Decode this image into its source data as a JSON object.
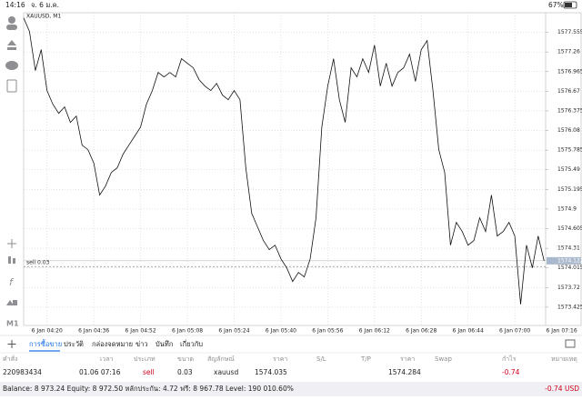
{
  "status_bar": {
    "time": "14:16",
    "date": "จ. 6 ม.ค.",
    "battery": "67%"
  },
  "chart_data": {
    "type": "line",
    "title": "XAUUSD, M1",
    "color": "#111111",
    "grid": true,
    "timeframe": "M1",
    "ylim": [
      1573.15,
      1577.85
    ],
    "yticks": [
      1573.425,
      1573.72,
      1574.015,
      1574.31,
      1574.605,
      1574.9,
      1575.195,
      1575.49,
      1575.785,
      1576.08,
      1576.375,
      1576.67,
      1576.965,
      1577.26,
      1577.555
    ],
    "bid": 1574.122,
    "order_line": {
      "label": "sell 0.03",
      "value": 1574.035
    },
    "categories": [
      null,
      null,
      null,
      null,
      "6 Jan 04:20",
      null,
      null,
      null,
      null,
      null,
      null,
      null,
      "6 Jan 04:36",
      null,
      null,
      null,
      null,
      null,
      null,
      null,
      "6 Jan 04:52",
      null,
      null,
      null,
      null,
      null,
      null,
      null,
      "6 Jan 05:08",
      null,
      null,
      null,
      null,
      null,
      null,
      null,
      "6 Jan 05:24",
      null,
      null,
      null,
      null,
      null,
      null,
      null,
      "6 Jan 05:40",
      null,
      null,
      null,
      null,
      null,
      null,
      null,
      "6 Jan 05:56",
      null,
      null,
      null,
      null,
      null,
      null,
      null,
      "6 Jan 06:12",
      null,
      null,
      null,
      null,
      null,
      null,
      null,
      "6 Jan 06:28",
      null,
      null,
      null,
      null,
      null,
      null,
      null,
      "6 Jan 06:44",
      null,
      null,
      null,
      null,
      null,
      null,
      null,
      "6 Jan 07:00",
      null,
      null,
      null,
      null,
      null,
      null,
      null,
      "6 Jan 07:16"
    ],
    "values": [
      1577.773,
      1577.568,
      1576.981,
      1577.295,
      1576.68,
      1576.475,
      1576.338,
      1576.434,
      1576.202,
      1576.297,
      1575.86,
      1575.792,
      1575.587,
      1575.109,
      1575.245,
      1575.45,
      1575.519,
      1575.724,
      1575.86,
      1575.997,
      1576.133,
      1576.475,
      1576.68,
      1576.953,
      1576.885,
      1576.953,
      1576.885,
      1577.158,
      1577.09,
      1577.022,
      1576.844,
      1576.748,
      1576.68,
      1576.789,
      1576.612,
      1576.543,
      1576.68,
      1576.543,
      1575.519,
      1574.835,
      1574.631,
      1574.426,
      1574.289,
      1574.357,
      1574.152,
      1574.016,
      1573.811,
      1573.947,
      1573.879,
      1574.152,
      1574.767,
      1576.133,
      1576.748,
      1577.158,
      1576.543,
      1576.202,
      1577.022,
      1576.885,
      1577.158,
      1576.953,
      1577.363,
      1576.748,
      1577.09,
      1576.748,
      1576.953,
      1577.022,
      1577.227,
      1576.817,
      1577.295,
      1577.431,
      1576.68,
      1575.792,
      1575.45,
      1574.357,
      1574.699,
      1574.562,
      1574.357,
      1574.426,
      1574.767,
      1574.562,
      1575.109,
      1574.494,
      1574.562,
      1574.699,
      1574.494,
      1573.469,
      1574.357,
      1574.016,
      1574.494,
      1574.122,
      null,
      null,
      null
    ]
  },
  "tabs": [
    "การซื้อขาย",
    "ประวัติ",
    "กล่องจดหมาย",
    "ข่าว",
    "บันทึก",
    "เกี่ยวกับ"
  ],
  "table": {
    "headers": [
      "คำสั่ง",
      "เวลา",
      "ประเภท",
      "ขนาด",
      "สัญลักษณ์",
      "ราคา",
      "S/L",
      "T/P",
      "ราคา",
      "Swap",
      "กำไร",
      "หมายเหตุ"
    ],
    "rows": [
      [
        "220983434",
        "01.06 07:16",
        "sell",
        "0.03",
        "xauusd",
        "1574.035",
        "",
        "",
        "1574.284",
        "",
        "-0.74",
        ""
      ]
    ]
  },
  "footer": {
    "summary": "Balance: 8 973.24 Equity: 8 972.50 หลักประกัน: 4.72 ฟรี: 8 967.78 Level: 190 010.60%",
    "total": "-0.74 USD"
  }
}
